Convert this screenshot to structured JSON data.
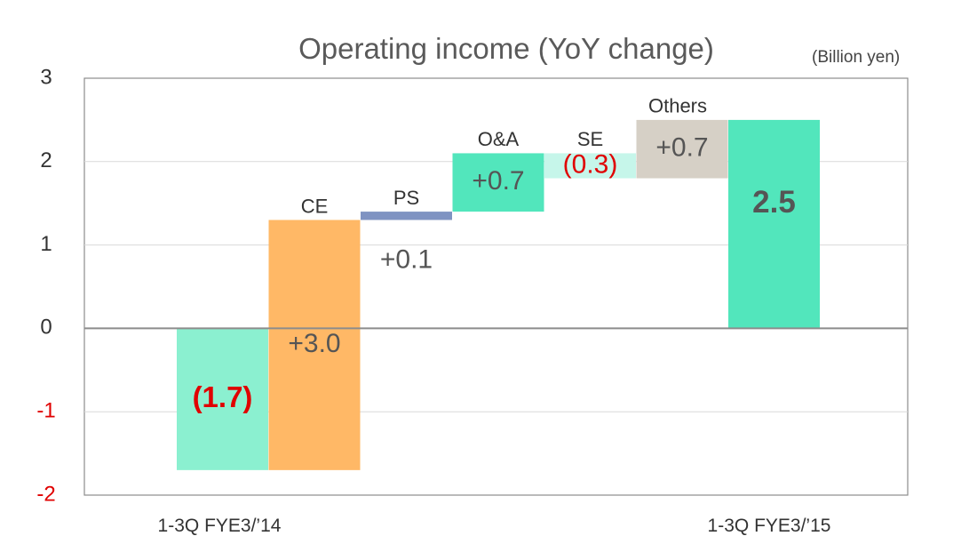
{
  "chart_data": {
    "type": "bar",
    "subtype": "waterfall",
    "title": "Operating income (YoY change)",
    "unit_label": "(Billion yen)",
    "ylim": [
      -2,
      3
    ],
    "yticks": [
      3,
      2,
      1,
      0,
      -1,
      -2
    ],
    "grid": true,
    "categories": [
      "1-3Q FYE3/'14",
      "",
      "",
      "",
      "",
      "",
      "1-3Q FYE3/'15"
    ],
    "category_labels": [
      "1-3Q FYE3/’14",
      "1-3Q FYE3/’15"
    ],
    "steps": [
      {
        "name": "",
        "base": 0,
        "value": -1.7,
        "label": "(1.7)",
        "color": "#8bf0d0",
        "label_color": "#e00000"
      },
      {
        "name": "CE",
        "base": -1.7,
        "value": 3.0,
        "label": "+3.0",
        "color": "#ffb866",
        "label_color": "#555555"
      },
      {
        "name": "PS",
        "base": 1.3,
        "value": 0.1,
        "label": "+0.1",
        "color": "#7f93c2",
        "label_color": "#555555"
      },
      {
        "name": "O&A",
        "base": 1.4,
        "value": 0.7,
        "label": "+0.7",
        "color": "#52e6bc",
        "label_color": "#555555"
      },
      {
        "name": "SE",
        "base": 2.1,
        "value": -0.3,
        "label": "(0.3)",
        "color": "#c6f6ea",
        "label_color": "#e00000"
      },
      {
        "name": "Others",
        "base": 1.8,
        "value": 0.7,
        "label": "+0.7",
        "color": "#d6d0c6",
        "label_color": "#555555"
      },
      {
        "name": "",
        "base": 0,
        "value": 2.5,
        "label": "2.5",
        "color": "#52e6bc",
        "label_color": "#555555"
      }
    ],
    "negative_tick_color": "#e00000"
  }
}
